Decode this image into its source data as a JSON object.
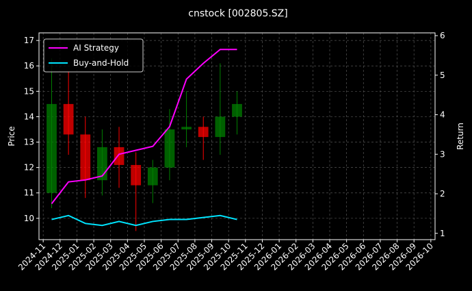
{
  "chart_data": {
    "type": "candlestick",
    "title": "cnstock [002805.SZ]",
    "y_label": "Price",
    "y2_label": "Return",
    "x": [
      "2024-11",
      "2024-12",
      "2025-01",
      "2025-02",
      "2025-03",
      "2025-04",
      "2025-05",
      "2025-06",
      "2025-07",
      "2025-08",
      "2025-09",
      "2025-10"
    ],
    "open": [
      11.0,
      14.5,
      13.3,
      11.5,
      12.8,
      12.1,
      11.3,
      12.0,
      13.5,
      13.6,
      13.2,
      14.0
    ],
    "high": [
      16.3,
      15.8,
      14.0,
      13.5,
      13.6,
      12.6,
      12.3,
      14.3,
      15.0,
      14.0,
      16.1,
      15.0
    ],
    "low": [
      10.4,
      12.5,
      10.8,
      10.9,
      11.2,
      9.5,
      10.6,
      11.5,
      12.8,
      12.3,
      12.5,
      13.3
    ],
    "close": [
      14.5,
      13.3,
      11.5,
      12.8,
      12.1,
      11.3,
      12.0,
      13.5,
      13.6,
      13.2,
      14.0,
      14.5
    ],
    "up_color": "#008000",
    "down_color": "#ff0000",
    "series": [
      {
        "name": "AI Strategy",
        "color": "#ff00ff",
        "axis": "y2",
        "values": [
          1.75,
          2.3,
          2.35,
          2.45,
          3.0,
          3.1,
          3.2,
          3.7,
          4.9,
          5.3,
          5.65,
          5.65
        ]
      },
      {
        "name": "Buy-and-Hold",
        "color": "#00e5ff",
        "axis": "y2",
        "values": [
          1.35,
          1.45,
          1.25,
          1.2,
          1.3,
          1.2,
          1.3,
          1.35,
          1.35,
          1.4,
          1.45,
          1.35
        ]
      }
    ],
    "xlim": [
      "2024-11",
      "2026-10"
    ],
    "xticks": [
      "2024-11",
      "2024-12",
      "2025-01",
      "2025-02",
      "2025-03",
      "2025-04",
      "2025-05",
      "2025-06",
      "2025-07",
      "2025-08",
      "2025-09",
      "2025-10",
      "2025-11",
      "2025-12",
      "2026-01",
      "2026-02",
      "2026-03",
      "2026-04",
      "2026-05",
      "2026-06",
      "2026-07",
      "2026-08",
      "2026-09",
      "2026-10"
    ],
    "ylim": [
      9.16,
      17.3
    ],
    "yticks": [
      10,
      11,
      12,
      13,
      14,
      15,
      16,
      17
    ],
    "y2lim": [
      0.84,
      6.07
    ],
    "y2ticks": [
      1,
      2,
      3,
      4,
      5,
      6
    ],
    "grid": true,
    "legend": "upper left"
  }
}
